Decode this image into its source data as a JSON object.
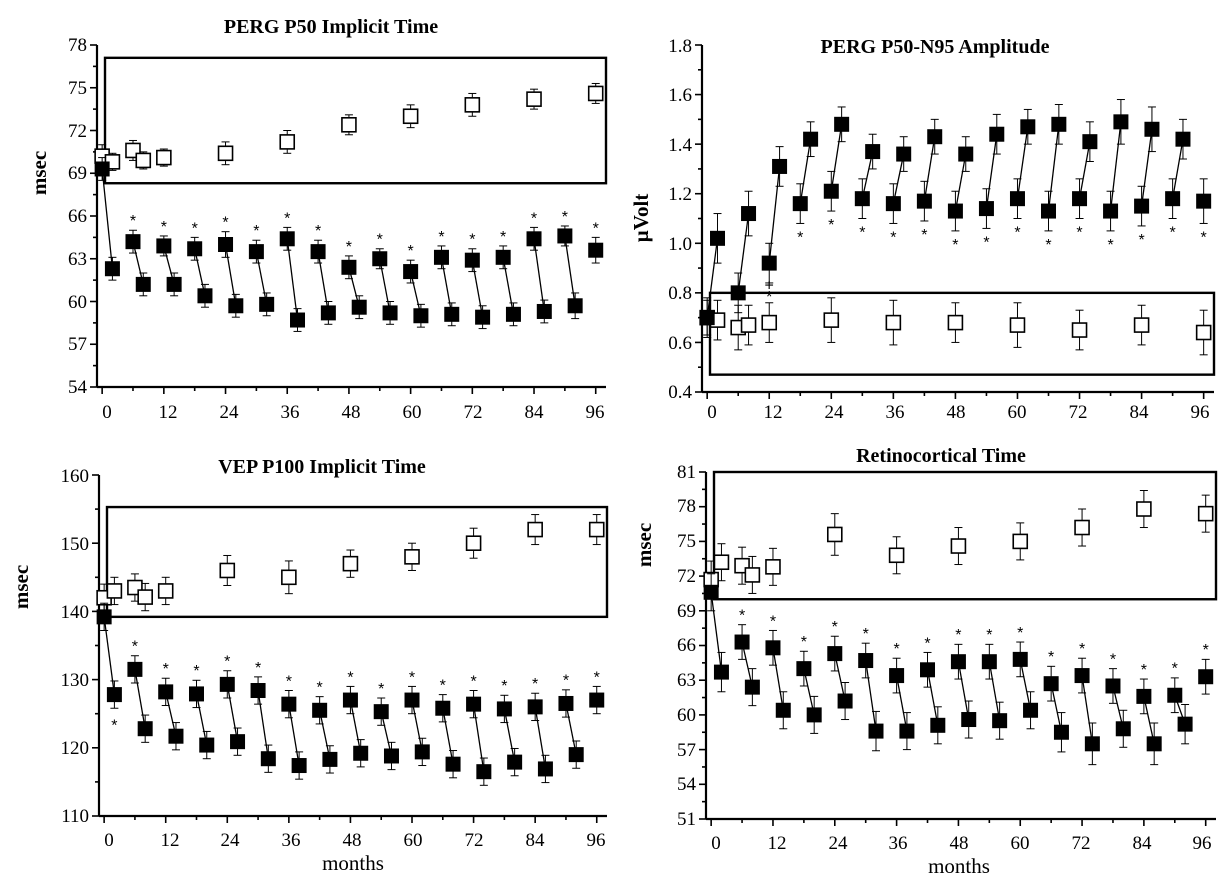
{
  "panels": [
    {
      "title": "PERG P50 Implicit Time",
      "ylabel": "msec",
      "xlabel": "",
      "yticks": [
        "54",
        "57",
        "60",
        "63",
        "66",
        "69",
        "72",
        "75",
        "78"
      ],
      "xticks": [
        "0",
        "12",
        "24",
        "36",
        "48",
        "60",
        "72",
        "84",
        "96"
      ]
    },
    {
      "title": "PERG P50-N95 Amplitude",
      "ylabel": "µVolt",
      "xlabel": "",
      "yticks": [
        "0.4",
        "0.6",
        "0.8",
        "1.0",
        "1.2",
        "1.4",
        "1.6",
        "1.8"
      ],
      "xticks": [
        "0",
        "12",
        "24",
        "36",
        "48",
        "60",
        "72",
        "84",
        "96"
      ]
    },
    {
      "title": "VEP P100 Implicit Time",
      "ylabel": "msec",
      "xlabel": "months",
      "yticks": [
        "110",
        "120",
        "130",
        "140",
        "150",
        "160"
      ],
      "xticks": [
        "0",
        "12",
        "24",
        "36",
        "48",
        "60",
        "72",
        "84",
        "96"
      ]
    },
    {
      "title": "Retinocortical Time",
      "ylabel": "msec",
      "xlabel": "months",
      "yticks": [
        "51",
        "54",
        "57",
        "60",
        "63",
        "66",
        "69",
        "72",
        "75",
        "78",
        "81"
      ],
      "xticks": [
        "0",
        "12",
        "24",
        "36",
        "48",
        "60",
        "72",
        "84",
        "96"
      ]
    }
  ],
  "chart_data": [
    {
      "type": "scatter",
      "title": "PERG P50 Implicit Time",
      "xlabel": "",
      "ylabel": "msec",
      "xlim": [
        -1,
        98
      ],
      "ylim": [
        54,
        78
      ],
      "x_ticks": [
        0,
        12,
        24,
        36,
        48,
        60,
        72,
        84,
        96
      ],
      "y_ticks": [
        54,
        57,
        60,
        63,
        66,
        69,
        72,
        75,
        78
      ],
      "reference_box": {
        "x": [
          -1,
          98
        ],
        "y": [
          68.3,
          77.1
        ]
      },
      "open_series": {
        "x": [
          0,
          2,
          6,
          8,
          12,
          24,
          36,
          48,
          60,
          72,
          84,
          96
        ],
        "y": [
          70.2,
          69.8,
          70.6,
          69.9,
          70.1,
          70.4,
          71.2,
          72.4,
          73.0,
          73.8,
          74.2,
          74.6
        ],
        "err": [
          0.8,
          0.6,
          0.7,
          0.6,
          0.6,
          0.8,
          0.8,
          0.7,
          0.8,
          0.8,
          0.7,
          0.7
        ]
      },
      "filled_pre": {
        "x": [
          0,
          6,
          12,
          18,
          24,
          30,
          36,
          42,
          48,
          54,
          60,
          66,
          72,
          78,
          84,
          90,
          96
        ],
        "y": [
          69.3,
          64.2,
          63.9,
          63.7,
          64.0,
          63.5,
          64.4,
          63.5,
          62.4,
          63.0,
          62.1,
          63.1,
          62.9,
          63.1,
          64.4,
          64.6,
          63.6
        ],
        "err": [
          0.8,
          0.8,
          0.7,
          0.8,
          0.9,
          0.8,
          0.8,
          0.8,
          0.8,
          0.7,
          0.8,
          0.8,
          0.8,
          0.8,
          0.8,
          0.7,
          0.9
        ],
        "star": [
          false,
          true,
          true,
          true,
          true,
          true,
          true,
          true,
          true,
          true,
          true,
          true,
          true,
          true,
          true,
          true,
          true
        ]
      },
      "filled_post": {
        "x": [
          2,
          8,
          14,
          20,
          26,
          32,
          38,
          44,
          50,
          56,
          62,
          68,
          74,
          80,
          86,
          92
        ],
        "y": [
          62.3,
          61.2,
          61.2,
          60.4,
          59.7,
          59.8,
          58.7,
          59.2,
          59.6,
          59.2,
          59.0,
          59.1,
          58.9,
          59.1,
          59.3,
          59.7
        ],
        "err": [
          0.8,
          0.8,
          0.8,
          0.8,
          0.8,
          0.8,
          0.8,
          0.8,
          0.8,
          0.8,
          0.8,
          0.8,
          0.8,
          0.8,
          0.8,
          0.9
        ]
      }
    },
    {
      "type": "scatter",
      "title": "PERG P50-N95 Amplitude",
      "xlabel": "",
      "ylabel": "µVolt",
      "xlim": [
        -1,
        98
      ],
      "ylim": [
        0.4,
        1.8
      ],
      "x_ticks": [
        0,
        12,
        24,
        36,
        48,
        60,
        72,
        84,
        96
      ],
      "y_ticks": [
        0.4,
        0.6,
        0.8,
        1.0,
        1.2,
        1.4,
        1.6,
        1.8
      ],
      "reference_box": {
        "x": [
          -1,
          98
        ],
        "y": [
          0.47,
          0.8
        ]
      },
      "open_series": {
        "x": [
          0,
          2,
          6,
          8,
          12,
          24,
          36,
          48,
          60,
          72,
          84,
          96
        ],
        "y": [
          0.7,
          0.69,
          0.66,
          0.67,
          0.68,
          0.69,
          0.68,
          0.68,
          0.67,
          0.65,
          0.67,
          0.64
        ],
        "err": [
          0.08,
          0.08,
          0.09,
          0.08,
          0.08,
          0.09,
          0.09,
          0.08,
          0.09,
          0.08,
          0.08,
          0.09
        ]
      },
      "filled_pre": {
        "x": [
          0,
          6,
          12,
          18,
          24,
          30,
          36,
          42,
          48,
          54,
          60,
          66,
          72,
          78,
          84,
          90,
          96
        ],
        "y": [
          0.7,
          0.8,
          0.92,
          1.16,
          1.21,
          1.18,
          1.16,
          1.17,
          1.13,
          1.14,
          1.18,
          1.13,
          1.18,
          1.13,
          1.15,
          1.18,
          1.17
        ],
        "err": [
          0.07,
          0.08,
          0.08,
          0.08,
          0.08,
          0.08,
          0.08,
          0.08,
          0.08,
          0.08,
          0.08,
          0.08,
          0.08,
          0.08,
          0.08,
          0.08,
          0.09
        ],
        "star": [
          false,
          false,
          true,
          true,
          true,
          true,
          true,
          true,
          true,
          true,
          true,
          true,
          true,
          true,
          true,
          true,
          true
        ]
      },
      "filled_post": {
        "x": [
          2,
          8,
          14,
          20,
          26,
          32,
          38,
          44,
          50,
          56,
          62,
          68,
          74,
          80,
          86,
          92
        ],
        "y": [
          1.02,
          1.12,
          1.31,
          1.42,
          1.48,
          1.37,
          1.36,
          1.43,
          1.36,
          1.44,
          1.47,
          1.48,
          1.41,
          1.49,
          1.46,
          1.42
        ],
        "err": [
          0.1,
          0.09,
          0.08,
          0.07,
          0.07,
          0.07,
          0.07,
          0.07,
          0.07,
          0.08,
          0.07,
          0.08,
          0.08,
          0.09,
          0.09,
          0.08
        ]
      },
      "markers": [
        {
          "x": 12,
          "y": 0.81,
          "symbol": "+"
        }
      ]
    },
    {
      "type": "scatter",
      "title": "VEP P100 Implicit Time",
      "xlabel": "months",
      "ylabel": "msec",
      "xlim": [
        -1,
        98
      ],
      "ylim": [
        110,
        160
      ],
      "x_ticks": [
        0,
        12,
        24,
        36,
        48,
        60,
        72,
        84,
        96
      ],
      "y_ticks": [
        110,
        120,
        130,
        140,
        150,
        160
      ],
      "reference_box": {
        "x": [
          -1,
          98
        ],
        "y": [
          139.2,
          155.3
        ]
      },
      "open_series": {
        "x": [
          0,
          2,
          6,
          8,
          12,
          24,
          36,
          48,
          60,
          72,
          84,
          96
        ],
        "y": [
          142.0,
          143.0,
          143.5,
          142.1,
          143.0,
          146.0,
          145.0,
          147.0,
          148.0,
          150.0,
          152.0,
          152.0
        ],
        "err": [
          2.0,
          2.0,
          2.0,
          2.0,
          2.0,
          2.2,
          2.4,
          2.0,
          2.0,
          2.2,
          2.2,
          2.2
        ]
      },
      "filled_pre": {
        "x": [
          0,
          6,
          12,
          18,
          24,
          30,
          36,
          42,
          48,
          54,
          60,
          66,
          72,
          78,
          84,
          90,
          96
        ],
        "y": [
          139.2,
          131.5,
          128.2,
          127.9,
          129.3,
          128.4,
          126.4,
          125.5,
          127.0,
          125.3,
          127.0,
          125.8,
          126.4,
          125.7,
          126.0,
          126.5,
          127.0
        ],
        "err": [
          2.0,
          2.0,
          2.0,
          2.0,
          2.0,
          2.0,
          2.0,
          2.0,
          2.0,
          2.0,
          2.0,
          2.0,
          2.0,
          2.0,
          2.0,
          2.0,
          2.0
        ],
        "star": [
          false,
          true,
          true,
          true,
          true,
          true,
          true,
          true,
          true,
          true,
          true,
          true,
          true,
          true,
          true,
          true,
          true
        ]
      },
      "filled_post": {
        "x": [
          2,
          8,
          14,
          20,
          26,
          32,
          38,
          44,
          50,
          56,
          62,
          68,
          74,
          80,
          86,
          92
        ],
        "y": [
          127.8,
          122.8,
          121.7,
          120.4,
          120.9,
          118.4,
          117.4,
          118.3,
          119.2,
          118.8,
          119.4,
          117.6,
          116.5,
          117.9,
          116.9,
          119.0
        ],
        "err": [
          2.0,
          2.0,
          2.0,
          2.0,
          2.0,
          2.0,
          2.0,
          2.0,
          2.0,
          2.0,
          2.0,
          2.0,
          2.0,
          2.0,
          2.0,
          2.0
        ],
        "star_below": [
          true,
          false,
          false,
          false,
          false,
          false,
          false,
          false,
          false,
          false,
          false,
          false,
          false,
          false,
          false,
          false
        ]
      }
    },
    {
      "type": "scatter",
      "title": "Retinocortical Time",
      "xlabel": "months",
      "ylabel": "msec",
      "xlim": [
        -1,
        98
      ],
      "ylim": [
        51,
        81
      ],
      "x_ticks": [
        0,
        12,
        24,
        36,
        48,
        60,
        72,
        84,
        96
      ],
      "y_ticks": [
        51,
        54,
        57,
        60,
        63,
        66,
        69,
        72,
        75,
        78,
        81
      ],
      "reference_box": {
        "x": [
          -1,
          98
        ],
        "y": [
          70.0,
          81.0
        ]
      },
      "open_series": {
        "x": [
          0,
          2,
          6,
          8,
          12,
          24,
          36,
          48,
          60,
          72,
          84,
          96
        ],
        "y": [
          71.7,
          73.2,
          72.9,
          72.1,
          72.8,
          75.6,
          73.8,
          74.6,
          75.0,
          76.2,
          77.8,
          77.4
        ],
        "err": [
          1.6,
          1.6,
          1.6,
          1.6,
          1.6,
          1.8,
          1.6,
          1.6,
          1.6,
          1.6,
          1.6,
          1.6
        ]
      },
      "filled_pre": {
        "x": [
          0,
          6,
          12,
          18,
          24,
          30,
          36,
          42,
          48,
          54,
          60,
          66,
          72,
          78,
          84,
          90,
          96
        ],
        "y": [
          70.6,
          66.3,
          65.8,
          64.0,
          65.3,
          64.7,
          63.4,
          63.9,
          64.6,
          64.6,
          64.8,
          62.7,
          63.4,
          62.5,
          61.6,
          61.7,
          63.3
        ],
        "err": [
          1.6,
          1.5,
          1.5,
          1.5,
          1.5,
          1.5,
          1.5,
          1.5,
          1.5,
          1.5,
          1.5,
          1.5,
          1.5,
          1.5,
          1.5,
          1.5,
          1.5
        ],
        "star": [
          false,
          true,
          true,
          true,
          true,
          true,
          true,
          true,
          true,
          true,
          true,
          true,
          true,
          true,
          true,
          true,
          true
        ]
      },
      "filled_post": {
        "x": [
          2,
          8,
          14,
          20,
          26,
          32,
          38,
          44,
          50,
          56,
          62,
          68,
          74,
          80,
          86,
          92
        ],
        "y": [
          63.7,
          62.4,
          60.4,
          60.0,
          61.2,
          58.6,
          58.6,
          59.1,
          59.6,
          59.5,
          60.4,
          58.5,
          57.5,
          58.8,
          57.5,
          59.2
        ],
        "err": [
          1.7,
          1.6,
          1.6,
          1.6,
          1.6,
          1.7,
          1.6,
          1.6,
          1.6,
          1.6,
          1.6,
          1.7,
          1.8,
          1.6,
          1.8,
          1.7
        ]
      }
    }
  ]
}
